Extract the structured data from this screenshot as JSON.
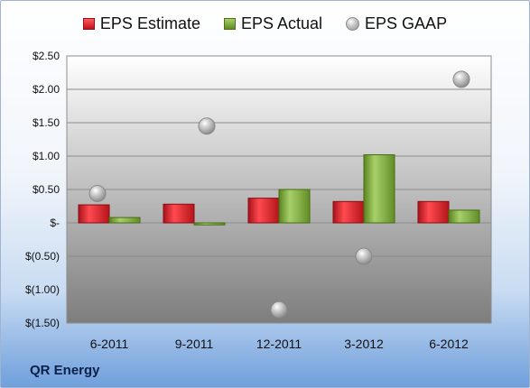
{
  "legend": {
    "estimate": "EPS Estimate",
    "actual": "EPS Actual",
    "gaap": "EPS GAAP"
  },
  "footer": "QR Energy",
  "colors": {
    "estimate": "#d01c24",
    "actual": "#7aaa3a",
    "gaap": "#a8a8a8",
    "plot_top": "#ffffff",
    "plot_bottom": "#7d7d7d"
  },
  "chart_data": {
    "type": "bar",
    "categories": [
      "6-2011",
      "9-2011",
      "12-2011",
      "3-2012",
      "6-2012"
    ],
    "series": [
      {
        "name": "EPS Estimate",
        "kind": "bar",
        "values": [
          0.27,
          0.28,
          0.37,
          0.32,
          0.32
        ]
      },
      {
        "name": "EPS Actual",
        "kind": "bar",
        "values": [
          0.08,
          -0.03,
          0.5,
          1.02,
          0.19
        ]
      },
      {
        "name": "EPS GAAP",
        "kind": "scatter",
        "values": [
          0.44,
          1.45,
          -1.3,
          -0.5,
          2.15
        ]
      }
    ],
    "ylim": [
      -1.5,
      2.5
    ],
    "yticks": [
      2.5,
      2.0,
      1.5,
      1.0,
      0.5,
      0,
      -0.5,
      -1.0,
      -1.5
    ],
    "ytick_labels": [
      "$2.50",
      "$2.00",
      "$1.50",
      "$1.00",
      "$0.50",
      "$-",
      "$(0.50)",
      "$(1.00)",
      "$(1.50)"
    ],
    "grid": true,
    "legend_position": "top"
  }
}
